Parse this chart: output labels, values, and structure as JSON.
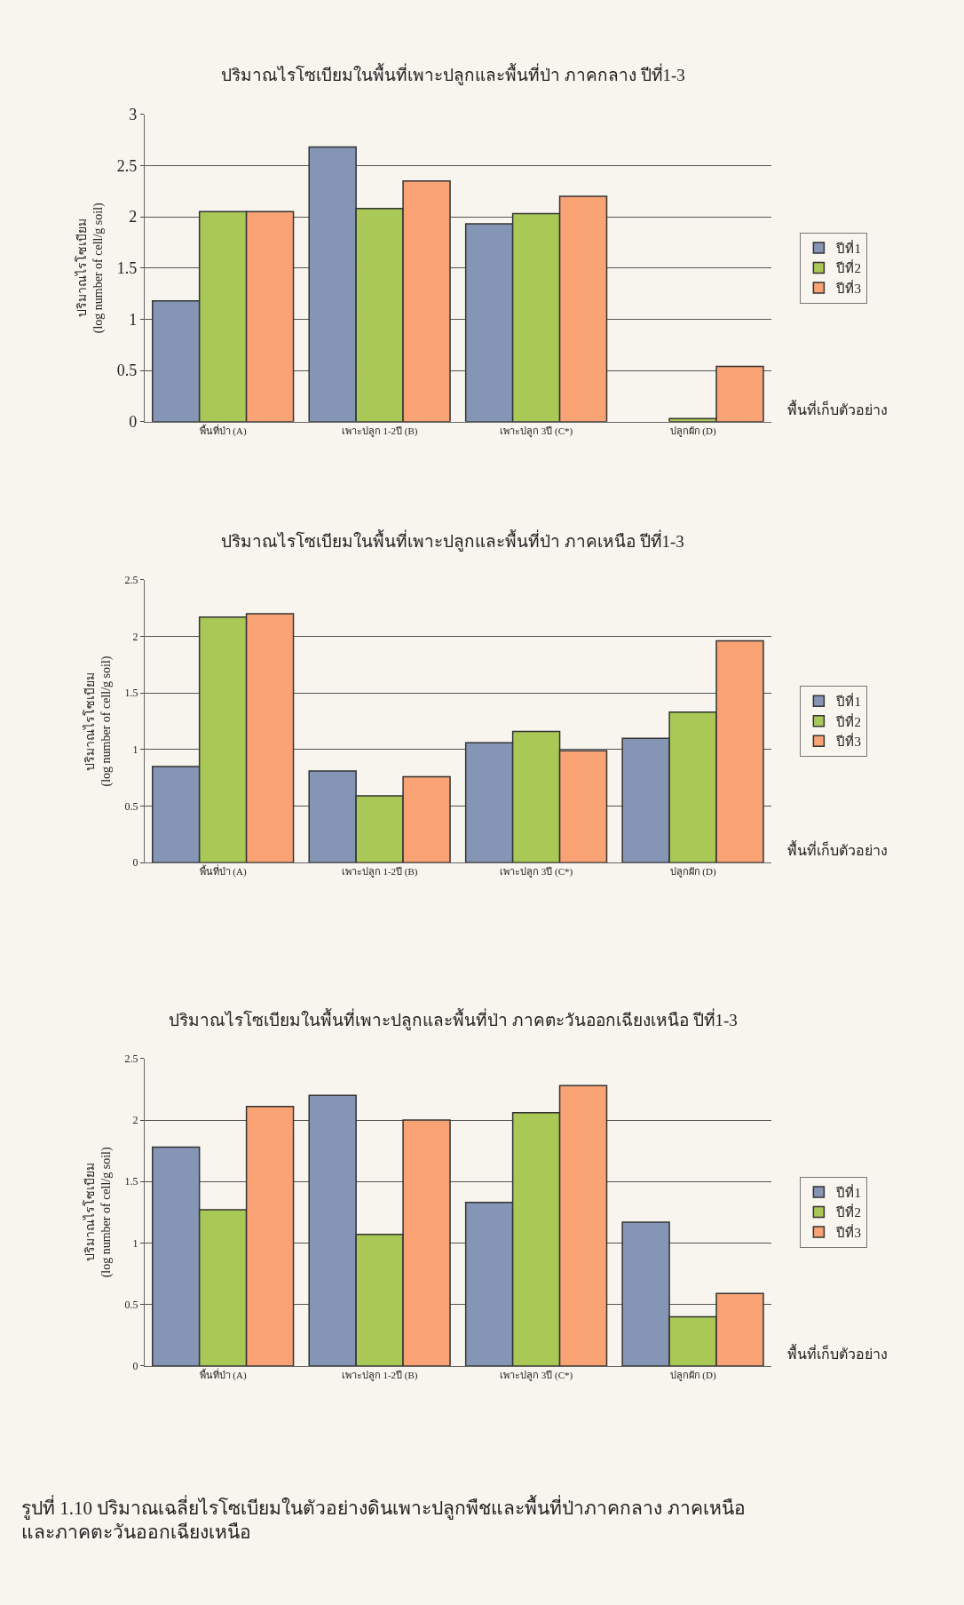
{
  "chart_data": [
    {
      "type": "bar",
      "title": "ปริมาณไรโซเบียมในพื้นที่เพาะปลูกและพื้นที่ป่า ภาคกลาง ปีที่1-3",
      "xlabel": "พื้นที่เก็บตัวอย่าง",
      "ylabel": "ปริมาณไรโซเบียม\n(log number of cell/g soil)",
      "categories": [
        "พื้นที่ป่า (A)",
        "เพาะปลูก 1-2ปี (B)",
        "เพาะปลูก 3ปี (C*)",
        "ปลูกผัก (D)"
      ],
      "series": [
        {
          "name": "ปีที่1",
          "color": "#8595b5",
          "values": [
            1.18,
            2.68,
            1.93,
            null
          ]
        },
        {
          "name": "ปีที่2",
          "color": "#a9c855",
          "values": [
            2.05,
            2.08,
            2.03,
            0.03
          ]
        },
        {
          "name": "ปีที่3",
          "color": "#f9a375",
          "values": [
            2.05,
            2.35,
            2.2,
            0.54
          ]
        }
      ],
      "ylim": [
        0,
        3
      ],
      "yticks": [
        0,
        0.5,
        1,
        1.5,
        2,
        2.5,
        3
      ],
      "grid": "y",
      "legend": "right"
    },
    {
      "type": "bar",
      "title": "ปริมาณไรโซเบียมในพื้นที่เพาะปลูกและพื้นที่ป่า ภาคเหนือ ปีที่1-3",
      "xlabel": "พื้นที่เก็บตัวอย่าง",
      "ylabel": "ปริมาณไรโซเบียม\n(log number of cell/g soil)",
      "categories": [
        "พื้นที่ป่า (A)",
        "เพาะปลูก 1-2ปี (B)",
        "เพาะปลูก 3ปี (C*)",
        "ปลูกผัก (D)"
      ],
      "series": [
        {
          "name": "ปีที่1",
          "color": "#8595b5",
          "values": [
            0.85,
            0.81,
            1.06,
            1.1
          ]
        },
        {
          "name": "ปีที่2",
          "color": "#a9c855",
          "values": [
            2.17,
            0.59,
            1.16,
            1.33
          ]
        },
        {
          "name": "ปีที่3",
          "color": "#f9a375",
          "values": [
            2.2,
            0.76,
            0.99,
            1.96
          ]
        }
      ],
      "ylim": [
        0,
        2.5
      ],
      "yticks": [
        0,
        0.5,
        1,
        1.5,
        2,
        2.5
      ],
      "grid": "y",
      "legend": "right"
    },
    {
      "type": "bar",
      "title": "ปริมาณไรโซเบียมในพื้นที่เพาะปลูกและพื้นที่ป่า ภาคตะวันออกเฉียงเหนือ ปีที่1-3",
      "xlabel": "พื้นที่เก็บตัวอย่าง",
      "ylabel": "ปริมาณไรโซเบียม\n(log number of cell/g soil)",
      "categories": [
        "พื้นที่ป่า (A)",
        "เพาะปลูก 1-2ปี (B)",
        "เพาะปลูก 3ปี (C*)",
        "ปลูกผัก (D)"
      ],
      "series": [
        {
          "name": "ปีที่1",
          "color": "#8595b5",
          "values": [
            1.78,
            2.2,
            1.33,
            1.17
          ]
        },
        {
          "name": "ปีที่2",
          "color": "#a9c855",
          "values": [
            1.27,
            1.07,
            2.06,
            0.4
          ]
        },
        {
          "name": "ปีที่3",
          "color": "#f9a375",
          "values": [
            2.11,
            2.0,
            2.28,
            0.59
          ]
        }
      ],
      "ylim": [
        0,
        2.5
      ],
      "yticks": [
        0,
        0.5,
        1,
        1.5,
        2,
        2.5
      ],
      "grid": "y",
      "legend": "right",
      "annotations": [
        "รูปที่ 1.10 ปริมาณเฉลี่ยไรโซเบียมในตัวอย่างดินเพาะปลูกพืชและพื้นที่ป่าภาคกลาง ภาคเหนือ\nและภาคตะวันออกเฉียงเหนือ"
      ]
    }
  ]
}
